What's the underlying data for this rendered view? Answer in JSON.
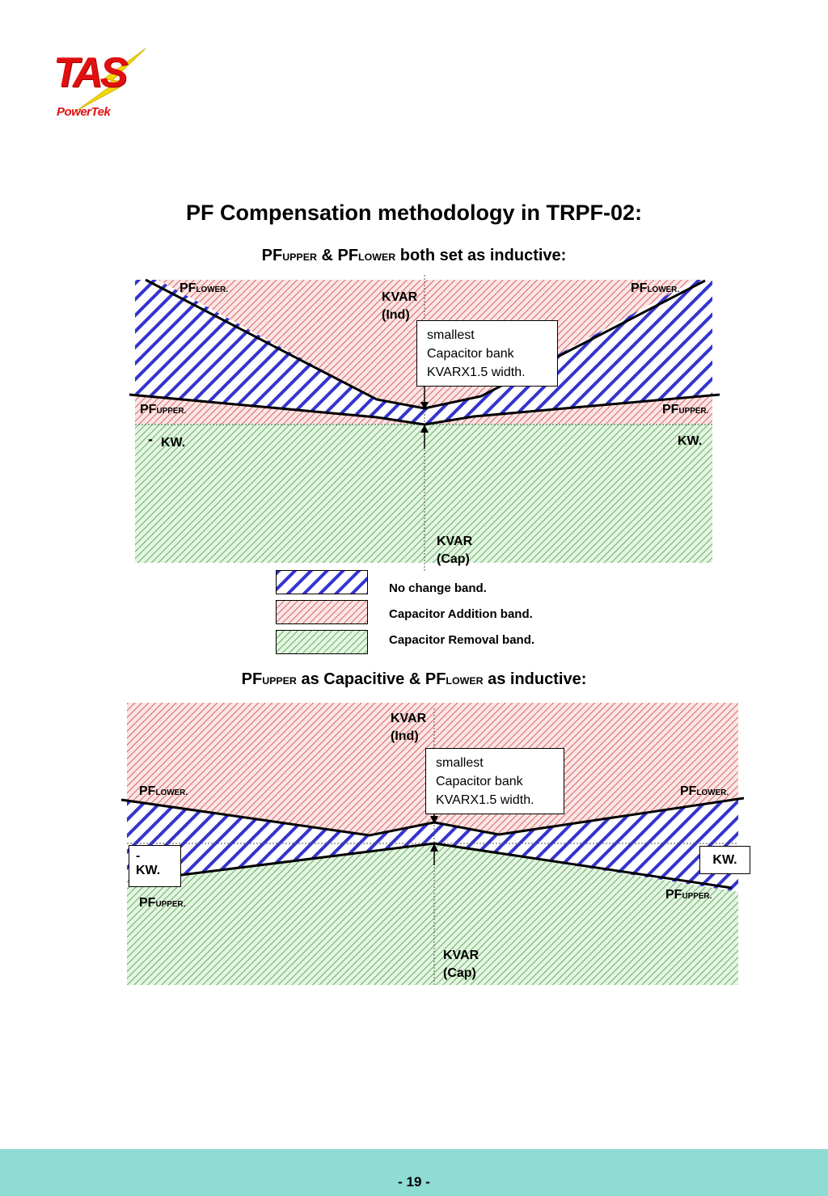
{
  "logo": {
    "main": "TAS",
    "sub": "PowerTek",
    "icon": "lightning-bolt-icon",
    "color": "#e01010"
  },
  "title": "PF Compensation methodology in TRPF-02:",
  "diagram1": {
    "heading": {
      "pf1": "PF",
      "upper": "UPPER",
      "amp": " & PF",
      "lower": "LOWER",
      "rest": " both set as inductive:"
    },
    "pf_lower_left": {
      "pf": "PF",
      "sub": "LOWER."
    },
    "pf_lower_right": {
      "pf": "PF",
      "sub": "LOWER."
    },
    "pf_upper_left": {
      "pf": "PF",
      "sub": "UPPER."
    },
    "pf_upper_right": {
      "pf": "PF",
      "sub": "UPPER."
    },
    "kw_left_dash": "-",
    "kw_left": "KW.",
    "kw_right": "KW.",
    "kvar_ind": [
      "KVAR",
      "(Ind)"
    ],
    "kvar_cap": [
      "KVAR",
      "(Cap)"
    ],
    "note": [
      "smallest",
      "Capacitor bank",
      "KVARX1.5 width."
    ]
  },
  "legend": [
    {
      "label": "No change band.",
      "color": "#3b3bd6"
    },
    {
      "label": "Capacitor Addition band.",
      "color": "#e06a6a"
    },
    {
      "label": "Capacitor Removal band.",
      "color": "#49b04f"
    }
  ],
  "diagram2": {
    "heading": {
      "pf1": "PF",
      "upper": "UPPER",
      "mid": " as Capacitive & PF",
      "lower": "LOWER",
      "rest": " as inductive:"
    },
    "pf_lower_left": {
      "pf": "PF",
      "sub": "LOWER."
    },
    "pf_lower_right": {
      "pf": "PF",
      "sub": "LOWER."
    },
    "pf_upper_left": {
      "pf": "PF",
      "sub": "UPPER."
    },
    "pf_upper_right": {
      "pf": "PF",
      "sub": "UPPER."
    },
    "kw_left": [
      "-",
      "KW."
    ],
    "kw_right": "KW.",
    "kvar_ind": [
      "KVAR",
      "(Ind)"
    ],
    "kvar_cap": [
      "KVAR",
      "(Cap)"
    ],
    "note": [
      "smallest",
      "Capacitor bank",
      "KVARX1.5 width."
    ]
  },
  "page_number": "- 19 -"
}
